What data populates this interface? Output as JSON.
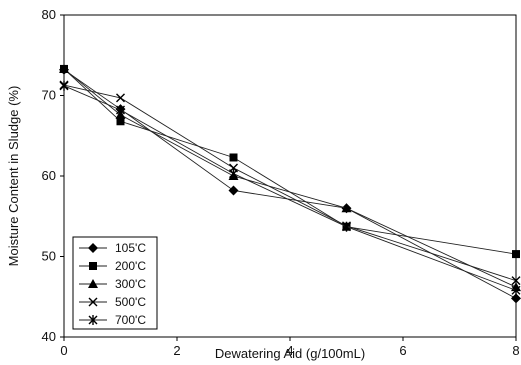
{
  "chart_data": {
    "type": "line",
    "xlabel": "Dewatering Aid (g/100mL)",
    "ylabel": "Moisture Content in Sludge (%)",
    "xlim": [
      0,
      8
    ],
    "ylim": [
      40,
      80
    ],
    "x_ticks": [
      "0",
      "2",
      "4",
      "6",
      "8"
    ],
    "y_ticks": [
      "40",
      "50",
      "60",
      "70",
      "80"
    ],
    "grid": false,
    "legend_position": "bottom-left",
    "x": [
      0,
      1,
      3,
      5,
      8
    ],
    "series": [
      {
        "name": "105'C",
        "marker": "diamond",
        "values": [
          73.2,
          68.3,
          58.2,
          56.0,
          44.8
        ]
      },
      {
        "name": "200'C",
        "marker": "square",
        "values": [
          73.3,
          66.8,
          62.3,
          53.7,
          50.3
        ]
      },
      {
        "name": "300'C",
        "marker": "triangle",
        "values": [
          73.3,
          67.6,
          60.0,
          56.0,
          46.2
        ]
      },
      {
        "name": "500'C",
        "marker": "x",
        "values": [
          71.3,
          69.7,
          61.0,
          53.8,
          47.0
        ]
      },
      {
        "name": "700'C",
        "marker": "star",
        "values": [
          71.2,
          68.2,
          60.3,
          53.7,
          45.8
        ]
      }
    ]
  }
}
